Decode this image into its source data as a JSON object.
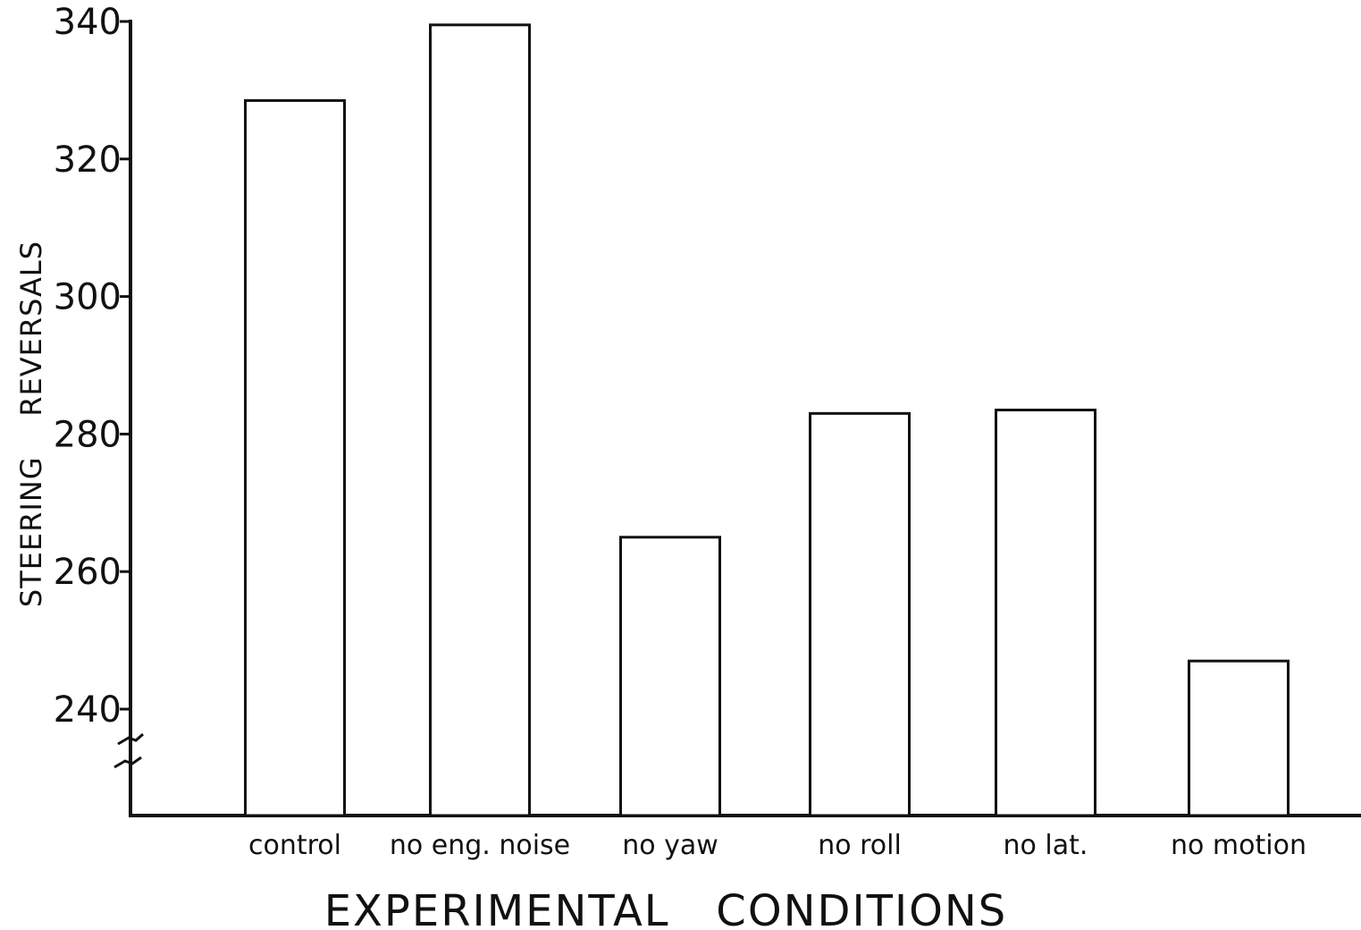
{
  "chart_data": {
    "type": "bar",
    "categories": [
      "control",
      "no eng. noise",
      "no yaw",
      "no roll",
      "no lat.",
      "no motion"
    ],
    "values": [
      328.5,
      339.5,
      265,
      283,
      283.5,
      247
    ],
    "yticks": [
      240,
      260,
      280,
      300,
      320,
      340
    ],
    "ylim": [
      224.5,
      340.5
    ],
    "axis_break": true,
    "xlabel": "EXPERIMENTAL   CONDITIONS",
    "ylabel": "STEERING    REVERSALS",
    "grid": false,
    "colors": {
      "bar_fill": "#ffffff",
      "stroke": "#111111"
    }
  }
}
